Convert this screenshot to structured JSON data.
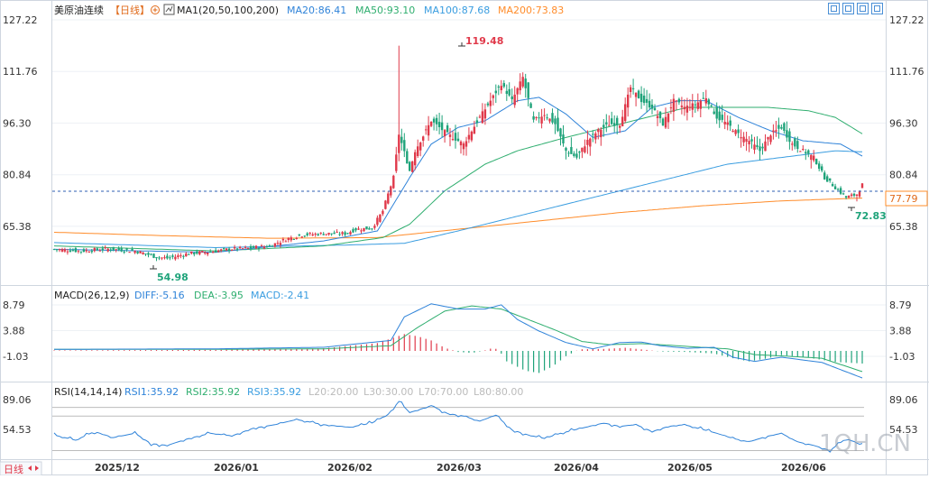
{
  "header": {
    "name": "美原油连续",
    "period": "【日线】",
    "ma_label": "MA1(20,50,100,200)",
    "ma20": "MA20:86.41",
    "ma50": "MA50:93.10",
    "ma100": "MA100:87.68",
    "ma200": "MA200:73.83"
  },
  "price_axis": {
    "ticks": [
      "127.22",
      "111.76",
      "96.30",
      "80.84",
      "65.38"
    ],
    "current_value": "77.79",
    "high_label": "119.48",
    "low_label_right": "72.83",
    "low_label_left": "54.98"
  },
  "macd": {
    "title": "MACD(26,12,9)",
    "diff": "DIFF:-5.16",
    "dea": "DEA:-3.95",
    "macd": "MACD:-2.41",
    "ticks": [
      "8.79",
      "3.88",
      "-1.03"
    ]
  },
  "rsi": {
    "title": "RSI(14,14,14)",
    "rsi1": "RSI1:35.92",
    "rsi2": "RSI2:35.92",
    "rsi3": "RSI3:35.92",
    "l20": "L20:20.00",
    "l30": "L30:30.00",
    "l70": "L70:70.00",
    "l80": "L80:80.00",
    "ticks": [
      "89.06",
      "54.53"
    ]
  },
  "x_axis": {
    "labels": [
      "2025/12",
      "2026/01",
      "2026/02",
      "2026/03",
      "2026/04",
      "2026/05",
      "2026/06"
    ]
  },
  "footer": {
    "left_text": "日线",
    "watermark": "1QH.CN"
  },
  "colors": {
    "up": "#e0394a",
    "down": "#1fa37a",
    "ma20": "#2f83d9",
    "ma50": "#2fae6f",
    "ma100": "#3a9de0",
    "ma200": "#ff8c2a",
    "diff": "#2f83d9",
    "dea": "#2fae6f",
    "rsi": "#2f83d9"
  },
  "chart_data": {
    "type": "candlestick",
    "panels": [
      "price",
      "macd",
      "rsi"
    ],
    "price_ylim": [
      54,
      127.22
    ],
    "indicators": {
      "MA20": 86.41,
      "MA50": 93.1,
      "MA100": 87.68,
      "MA200": 73.83,
      "DIFF": -5.16,
      "DEA": -3.95,
      "MACD": -2.41,
      "RSI1": 35.92,
      "RSI2": 35.92,
      "RSI3": 35.92
    },
    "annotations": {
      "high": 119.48,
      "low_recent": 72.83,
      "low_early": 54.98,
      "last": 77.79
    },
    "close_anchors": [
      [
        0,
        58.5
      ],
      [
        10,
        58.0
      ],
      [
        20,
        58.6
      ],
      [
        30,
        58.0
      ],
      [
        38,
        56.2
      ],
      [
        42,
        55.8
      ],
      [
        50,
        57.2
      ],
      [
        58,
        57.8
      ],
      [
        66,
        58.6
      ],
      [
        72,
        58.8
      ],
      [
        80,
        59.5
      ],
      [
        86,
        61.5
      ],
      [
        92,
        62.8
      ],
      [
        100,
        63.2
      ],
      [
        108,
        63.2
      ],
      [
        112,
        64.5
      ],
      [
        118,
        64.8
      ],
      [
        122,
        70
      ],
      [
        126,
        80
      ],
      [
        128,
        93
      ],
      [
        132,
        82
      ],
      [
        134,
        88
      ],
      [
        140,
        97
      ],
      [
        146,
        93
      ],
      [
        152,
        90
      ],
      [
        158,
        98
      ],
      [
        162,
        103
      ],
      [
        166,
        108
      ],
      [
        170,
        103
      ],
      [
        174,
        110
      ],
      [
        178,
        97
      ],
      [
        182,
        99
      ],
      [
        186,
        96
      ],
      [
        190,
        88
      ],
      [
        194,
        86
      ],
      [
        198,
        91
      ],
      [
        202,
        94
      ],
      [
        206,
        96
      ],
      [
        210,
        96
      ],
      [
        214,
        107
      ],
      [
        218,
        103
      ],
      [
        222,
        101
      ],
      [
        226,
        96
      ],
      [
        230,
        103
      ],
      [
        234,
        101
      ],
      [
        238,
        102
      ],
      [
        242,
        104
      ],
      [
        246,
        98
      ],
      [
        250,
        96
      ],
      [
        254,
        93
      ],
      [
        258,
        91
      ],
      [
        262,
        88
      ],
      [
        266,
        93
      ],
      [
        270,
        95
      ],
      [
        274,
        90
      ],
      [
        278,
        88
      ],
      [
        282,
        86
      ],
      [
        286,
        80
      ],
      [
        290,
        77
      ],
      [
        294,
        74
      ],
      [
        298,
        75
      ],
      [
        300,
        77.8
      ]
    ],
    "macd_hist_anchors": [
      [
        0,
        0.1
      ],
      [
        60,
        0.2
      ],
      [
        100,
        0.5
      ],
      [
        120,
        1.5
      ],
      [
        130,
        3.2
      ],
      [
        135,
        2.8
      ],
      [
        140,
        2.0
      ],
      [
        145,
        0.6
      ],
      [
        150,
        -0.2
      ],
      [
        155,
        -0.4
      ],
      [
        160,
        0.1
      ],
      [
        163,
        0.6
      ],
      [
        165,
        0.2
      ],
      [
        168,
        -2.0
      ],
      [
        175,
        -3.8
      ],
      [
        180,
        -4.2
      ],
      [
        185,
        -3.0
      ],
      [
        190,
        -1.0
      ],
      [
        195,
        0.3
      ],
      [
        205,
        0.4
      ],
      [
        212,
        0.6
      ],
      [
        218,
        0.3
      ],
      [
        225,
        -0.1
      ],
      [
        235,
        -0.2
      ],
      [
        245,
        -0.5
      ],
      [
        252,
        -1.4
      ],
      [
        258,
        -2.0
      ],
      [
        264,
        -1.5
      ],
      [
        270,
        -0.8
      ],
      [
        280,
        -1.3
      ],
      [
        290,
        -2.1
      ],
      [
        300,
        -2.4
      ]
    ],
    "rsi_anchors": [
      [
        0,
        48
      ],
      [
        8,
        42
      ],
      [
        15,
        52
      ],
      [
        22,
        45
      ],
      [
        30,
        50
      ],
      [
        36,
        38
      ],
      [
        42,
        36
      ],
      [
        50,
        44
      ],
      [
        58,
        50
      ],
      [
        66,
        47
      ],
      [
        74,
        56
      ],
      [
        82,
        60
      ],
      [
        90,
        66
      ],
      [
        100,
        60
      ],
      [
        110,
        57
      ],
      [
        118,
        62
      ],
      [
        124,
        72
      ],
      [
        128,
        87
      ],
      [
        132,
        74
      ],
      [
        140,
        82
      ],
      [
        146,
        73
      ],
      [
        152,
        70
      ],
      [
        158,
        64
      ],
      [
        164,
        71
      ],
      [
        170,
        54
      ],
      [
        176,
        48
      ],
      [
        182,
        44
      ],
      [
        188,
        50
      ],
      [
        196,
        56
      ],
      [
        204,
        62
      ],
      [
        210,
        58
      ],
      [
        216,
        60
      ],
      [
        222,
        52
      ],
      [
        228,
        58
      ],
      [
        234,
        60
      ],
      [
        240,
        55
      ],
      [
        246,
        50
      ],
      [
        252,
        44
      ],
      [
        258,
        40
      ],
      [
        264,
        46
      ],
      [
        270,
        50
      ],
      [
        276,
        40
      ],
      [
        282,
        36
      ],
      [
        288,
        30
      ],
      [
        294,
        44
      ],
      [
        300,
        35.9
      ]
    ],
    "ma_anchors": {
      "MA20": [
        [
          0,
          58.5
        ],
        [
          60,
          57.6
        ],
        [
          100,
          61
        ],
        [
          120,
          64
        ],
        [
          132,
          80
        ],
        [
          140,
          90
        ],
        [
          150,
          95
        ],
        [
          160,
          97
        ],
        [
          172,
          103
        ],
        [
          180,
          104
        ],
        [
          190,
          99
        ],
        [
          200,
          92
        ],
        [
          212,
          94
        ],
        [
          222,
          101
        ],
        [
          232,
          103
        ],
        [
          242,
          103
        ],
        [
          254,
          98
        ],
        [
          266,
          94
        ],
        [
          278,
          91
        ],
        [
          292,
          90
        ],
        [
          300,
          86.41
        ]
      ],
      "MA50": [
        [
          0,
          59.5
        ],
        [
          60,
          58.0
        ],
        [
          100,
          59.5
        ],
        [
          122,
          62
        ],
        [
          132,
          66
        ],
        [
          145,
          76
        ],
        [
          160,
          84
        ],
        [
          172,
          88
        ],
        [
          190,
          92
        ],
        [
          205,
          95
        ],
        [
          220,
          98
        ],
        [
          235,
          101
        ],
        [
          250,
          101
        ],
        [
          265,
          101
        ],
        [
          280,
          100
        ],
        [
          290,
          98
        ],
        [
          300,
          93.1
        ]
      ],
      "MA100": [
        [
          0,
          60.5
        ],
        [
          60,
          59
        ],
        [
          110,
          59.8
        ],
        [
          130,
          60.3
        ],
        [
          150,
          64
        ],
        [
          170,
          68
        ],
        [
          190,
          72
        ],
        [
          210,
          76
        ],
        [
          230,
          80
        ],
        [
          250,
          84
        ],
        [
          270,
          86
        ],
        [
          290,
          88
        ],
        [
          300,
          87.68
        ]
      ],
      "MA200": [
        [
          0,
          63.6
        ],
        [
          40,
          62.6
        ],
        [
          80,
          61.8
        ],
        [
          120,
          62
        ],
        [
          150,
          64.5
        ],
        [
          180,
          67
        ],
        [
          210,
          69.5
        ],
        [
          240,
          71.5
        ],
        [
          270,
          73
        ],
        [
          300,
          73.83
        ]
      ]
    },
    "macd_line_anchors": {
      "DIFF": [
        [
          0,
          0.3
        ],
        [
          60,
          0.4
        ],
        [
          100,
          0.7
        ],
        [
          125,
          2.0
        ],
        [
          130,
          6.5
        ],
        [
          140,
          9.0
        ],
        [
          150,
          8.0
        ],
        [
          160,
          8.0
        ],
        [
          166,
          8.8
        ],
        [
          172,
          6.0
        ],
        [
          180,
          3.8
        ],
        [
          190,
          1.6
        ],
        [
          200,
          0.4
        ],
        [
          210,
          1.6
        ],
        [
          218,
          1.7
        ],
        [
          225,
          1.0
        ],
        [
          235,
          0.5
        ],
        [
          245,
          0.7
        ],
        [
          252,
          -1.2
        ],
        [
          260,
          -2.0
        ],
        [
          270,
          -1.2
        ],
        [
          285,
          -2.2
        ],
        [
          300,
          -5.16
        ]
      ],
      "DEA": [
        [
          0,
          0.3
        ],
        [
          60,
          0.3
        ],
        [
          100,
          0.4
        ],
        [
          125,
          1.0
        ],
        [
          135,
          4.5
        ],
        [
          145,
          7.6
        ],
        [
          155,
          8.6
        ],
        [
          166,
          8.0
        ],
        [
          176,
          6.0
        ],
        [
          186,
          4.0
        ],
        [
          196,
          1.8
        ],
        [
          206,
          1.2
        ],
        [
          218,
          1.4
        ],
        [
          228,
          1.1
        ],
        [
          240,
          0.7
        ],
        [
          250,
          0.4
        ],
        [
          260,
          -0.7
        ],
        [
          272,
          -1.0
        ],
        [
          285,
          -1.4
        ],
        [
          300,
          -3.95
        ]
      ]
    }
  }
}
